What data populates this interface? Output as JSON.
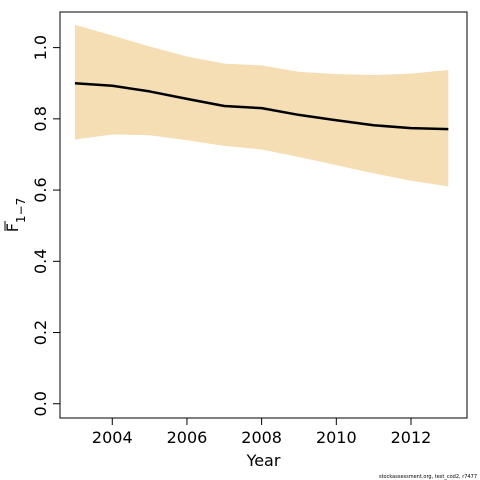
{
  "chart_data": {
    "type": "line",
    "xlabel": "Year",
    "ylabel": "F",
    "ylabel_subscript": "1−7",
    "xlim": [
      2002.6,
      2013.5
    ],
    "ylim": [
      -0.04,
      1.1
    ],
    "x_ticks": [
      2004,
      2006,
      2008,
      2010,
      2012
    ],
    "x_tick_labels": [
      "2004",
      "2006",
      "2008",
      "2010",
      "2012"
    ],
    "y_ticks": [
      0.0,
      0.2,
      0.4,
      0.6,
      0.8,
      1.0
    ],
    "y_tick_labels": [
      "0.0",
      "0.2",
      "0.4",
      "0.6",
      "0.8",
      "1.0"
    ],
    "grid": false,
    "band_color": "#F5DEB3",
    "line_color": "#000000",
    "x": [
      2003,
      2004,
      2005,
      2006,
      2007,
      2008,
      2009,
      2010,
      2011,
      2012,
      2013
    ],
    "series": [
      {
        "values": [
          0.9,
          0.893,
          0.877,
          0.856,
          0.836,
          0.83,
          0.811,
          0.796,
          0.782,
          0.774,
          0.771
        ]
      }
    ],
    "band": {
      "lower": [
        0.742,
        0.756,
        0.754,
        0.74,
        0.724,
        0.714,
        0.693,
        0.67,
        0.647,
        0.626,
        0.61
      ],
      "upper": [
        1.064,
        1.034,
        1.003,
        0.975,
        0.955,
        0.95,
        0.932,
        0.926,
        0.923,
        0.927,
        0.937
      ]
    }
  },
  "footnote": "stockassessment.org, test_cod2, r7477"
}
